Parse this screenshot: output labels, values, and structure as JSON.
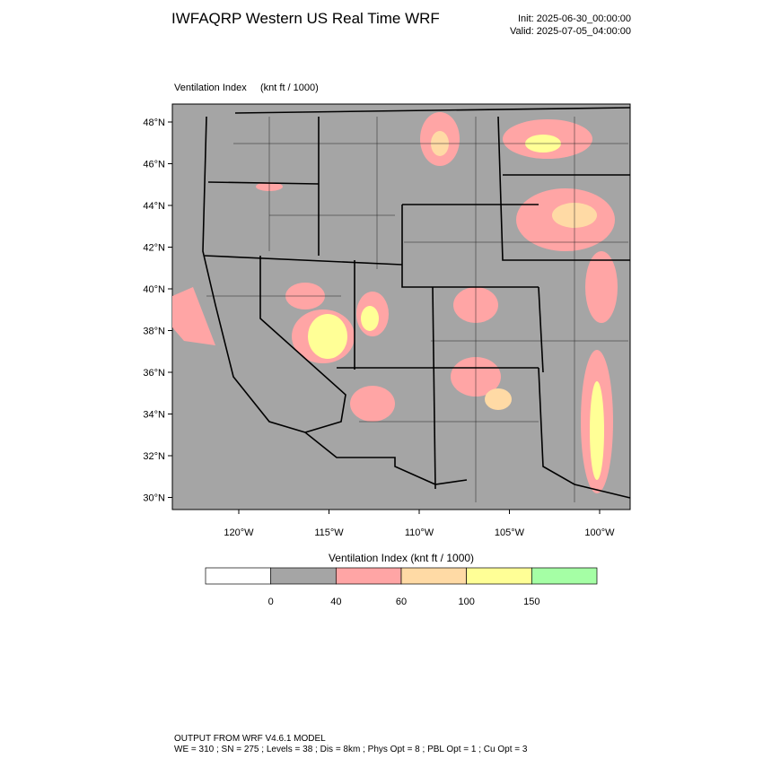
{
  "header": {
    "title": "IWFAQRP Western US Real Time WRF",
    "init": "Init: 2025-06-30_00:00:00",
    "valid": "Valid: 2025-07-05_04:00:00"
  },
  "map": {
    "field": "Ventilation Index",
    "units": "(knt ft / 1000)",
    "lat_labels": [
      "48°N",
      "46°N",
      "44°N",
      "42°N",
      "40°N",
      "38°N",
      "36°N",
      "34°N",
      "32°N",
      "30°N"
    ],
    "lon_labels": [
      "120°W",
      "115°W",
      "110°W",
      "105°W",
      "100°W"
    ]
  },
  "colorbar": {
    "title": "Ventilation Index  (knt ft / 1000)",
    "colors": [
      "#ffffff",
      "#a5a5a5",
      "#ffa5a5",
      "#ffdaa5",
      "#ffff96",
      "#a5ffa5"
    ],
    "labels": [
      0,
      40,
      60,
      100,
      150
    ]
  },
  "footer": {
    "model": "OUTPUT FROM WRF V4.6.1 MODEL",
    "details": "WE = 310 ; SN = 275 ; Levels = 38 ; Dis = 8km ; Phys Opt = 8 ; PBL Opt = 1 ; Cu Opt = 3"
  }
}
